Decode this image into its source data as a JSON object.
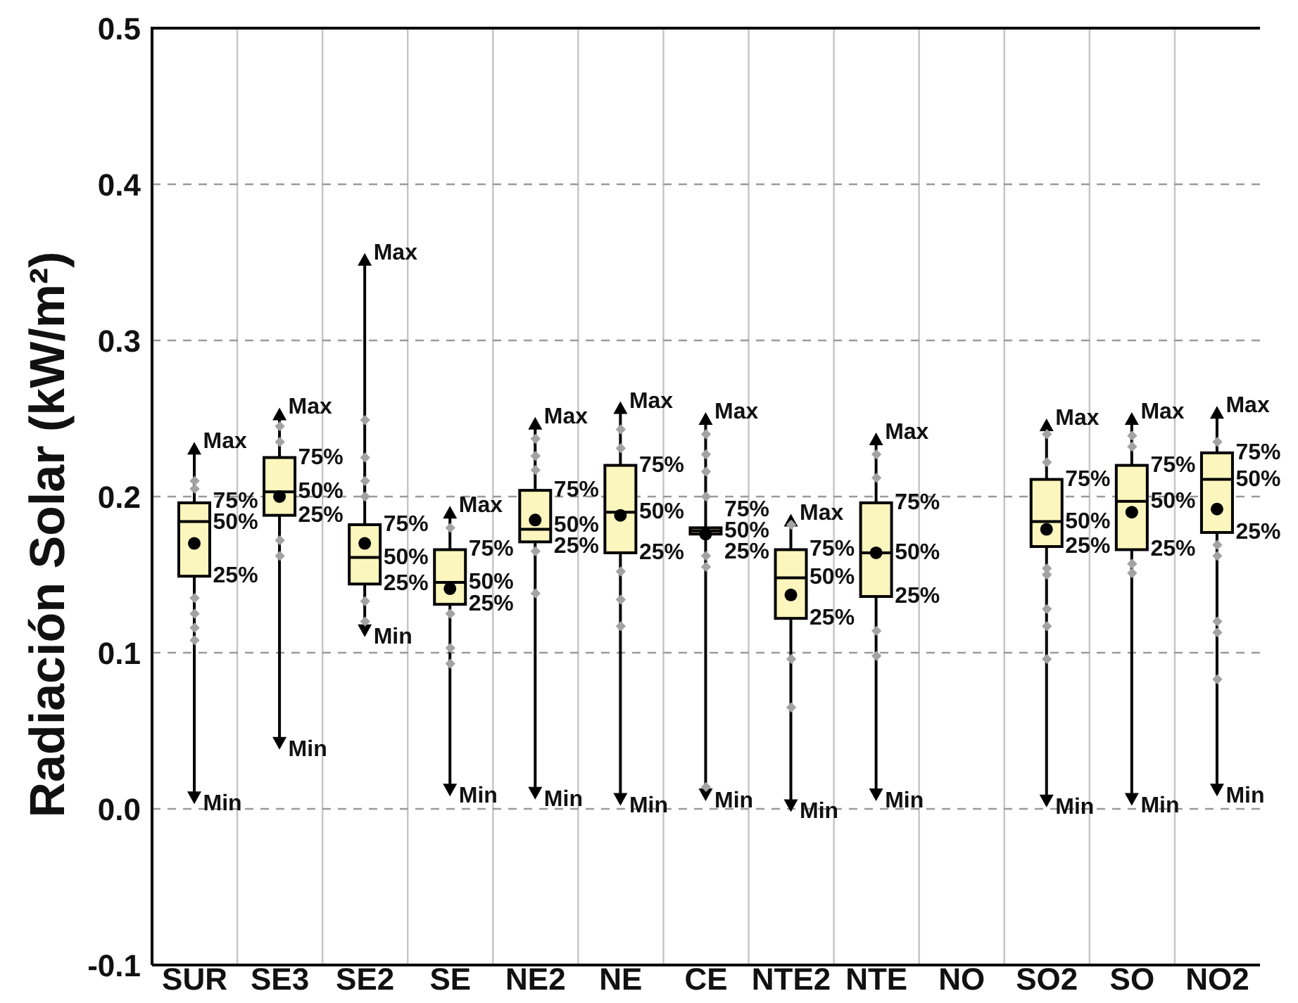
{
  "chart_data": {
    "type": "box",
    "ylabel": "Radiación Solar (kW/m²)",
    "categories": [
      "SUR",
      "SE3",
      "SE2",
      "SE",
      "NE2",
      "NE",
      "CE",
      "NTE2",
      "NTE",
      "NO",
      "SO2",
      "SO",
      "NO2"
    ],
    "series": [
      {
        "color": "#fbf6bd",
        "boxes": [
          {
            "low": 0.003,
            "q1": 0.149,
            "median": 0.184,
            "q3": 0.196,
            "high": 0.235,
            "mean": 0.17
          },
          {
            "low": 0.038,
            "q1": 0.188,
            "median": 0.203,
            "q3": 0.225,
            "high": 0.257,
            "mean": 0.2
          },
          {
            "low": 0.11,
            "q1": 0.144,
            "median": 0.161,
            "q3": 0.182,
            "high": 0.356,
            "mean": 0.17
          },
          {
            "low": 0.008,
            "q1": 0.131,
            "median": 0.145,
            "q3": 0.166,
            "high": 0.194,
            "mean": 0.141
          },
          {
            "low": 0.006,
            "q1": 0.171,
            "median": 0.179,
            "q3": 0.204,
            "high": 0.251,
            "mean": 0.185
          },
          {
            "low": 0.002,
            "q1": 0.164,
            "median": 0.19,
            "q3": 0.22,
            "high": 0.261,
            "mean": 0.188
          },
          {
            "low": 0.005,
            "q1": 0.176,
            "median": 0.178,
            "q3": 0.18,
            "high": 0.254,
            "mean": 0.176
          },
          {
            "low": -0.002,
            "q1": 0.122,
            "median": 0.148,
            "q3": 0.166,
            "high": 0.189,
            "mean": 0.137
          },
          {
            "low": 0.005,
            "q1": 0.136,
            "median": 0.164,
            "q3": 0.196,
            "high": 0.241,
            "mean": 0.164
          },
          null,
          {
            "low": 0.001,
            "q1": 0.168,
            "median": 0.184,
            "q3": 0.211,
            "high": 0.25,
            "mean": 0.179
          },
          {
            "low": 0.002,
            "q1": 0.166,
            "median": 0.197,
            "q3": 0.22,
            "high": 0.254,
            "mean": 0.19
          },
          {
            "low": 0.008,
            "q1": 0.177,
            "median": 0.211,
            "q3": 0.228,
            "high": 0.258,
            "mean": 0.192
          }
        ]
      },
      {
        "type": "scatter",
        "color": "#a3a3a3",
        "marker": "diamond",
        "x": [
          "SUR",
          "SUR",
          "SUR",
          "SUR",
          "SUR",
          "SUR",
          "SE3",
          "SE3",
          "SE3",
          "SE3",
          "SE2",
          "SE2",
          "SE2",
          "SE2",
          "SE2",
          "SE2",
          "SE",
          "SE",
          "SE",
          "SE",
          "NE2",
          "NE2",
          "NE2",
          "NE2",
          "NE2",
          "NE",
          "NE",
          "NE",
          "NE",
          "NE",
          "CE",
          "CE",
          "CE",
          "CE",
          "CE",
          "CE",
          "CE",
          "NTE2",
          "NTE2",
          "NTE2",
          "NTE",
          "NTE",
          "NTE",
          "NTE",
          "SO2",
          "SO2",
          "SO2",
          "SO2",
          "SO2",
          "SO2",
          "SO2",
          "SO",
          "SO",
          "SO",
          "SO",
          "NO2",
          "NO2",
          "NO2",
          "NO2",
          "NO2",
          "NO2"
        ],
        "values": [
          0.21,
          0.205,
          0.135,
          0.125,
          0.116,
          0.108,
          0.245,
          0.235,
          0.172,
          0.162,
          0.249,
          0.225,
          0.21,
          0.2,
          0.133,
          0.12,
          0.18,
          0.125,
          0.103,
          0.093,
          0.237,
          0.226,
          0.217,
          0.165,
          0.138,
          0.243,
          0.231,
          0.152,
          0.134,
          0.117,
          0.24,
          0.227,
          0.216,
          0.2,
          0.162,
          0.155,
          0.014,
          0.182,
          0.096,
          0.065,
          0.227,
          0.212,
          0.114,
          0.098,
          0.24,
          0.222,
          0.154,
          0.15,
          0.128,
          0.117,
          0.096,
          0.239,
          0.232,
          0.157,
          0.151,
          0.235,
          0.169,
          0.162,
          0.12,
          0.113,
          0.083
        ]
      }
    ],
    "ylim": [
      -0.1,
      0.5
    ],
    "yticks": [
      -0.1,
      {
        "value": 0,
        "label": "0.0"
      },
      0.1,
      0.2,
      0.3,
      0.4,
      0.5
    ],
    "grid": true,
    "annotations": [
      {
        "text": "Max",
        "x": "SUR",
        "y": 0.235
      },
      {
        "text": "75%",
        "x": "SUR",
        "y": 0.196
      },
      {
        "text": "50%",
        "x": "SUR",
        "y": 0.184
      },
      {
        "text": "25%",
        "x": "SUR",
        "y": 0.149
      },
      {
        "text": "Min",
        "x": "SUR",
        "y": 0.003
      },
      {
        "text": "Max",
        "x": "SE3",
        "y": 0.257
      },
      {
        "text": "75%",
        "x": "SE3",
        "y": 0.225
      },
      {
        "text": "50%",
        "x": "SE3",
        "y": 0.203
      },
      {
        "text": "25%",
        "x": "SE3",
        "y": 0.188
      },
      {
        "text": "Min",
        "x": "SE3",
        "y": 0.038
      },
      {
        "text": "Max",
        "x": "SE2",
        "y": 0.356
      },
      {
        "text": "75%",
        "x": "SE2",
        "y": 0.182
      },
      {
        "text": "50%",
        "x": "SE2",
        "y": 0.161
      },
      {
        "text": "25%",
        "x": "SE2",
        "y": 0.144
      },
      {
        "text": "Min",
        "x": "SE2",
        "y": 0.11
      },
      {
        "text": "Max",
        "x": "SE",
        "y": 0.194
      },
      {
        "text": "75%",
        "x": "SE",
        "y": 0.166
      },
      {
        "text": "50%",
        "x": "SE",
        "y": 0.145
      },
      {
        "text": "25%",
        "x": "SE",
        "y": 0.131
      },
      {
        "text": "Min",
        "x": "SE",
        "y": 0.008
      },
      {
        "text": "Max",
        "x": "NE2",
        "y": 0.251
      },
      {
        "text": "75%",
        "x": "NE2",
        "y": 0.204
      },
      {
        "text": "50%",
        "x": "NE2",
        "y": 0.179
      },
      {
        "text": "25%",
        "x": "NE2",
        "y": 0.171
      },
      {
        "text": "Min",
        "x": "NE2",
        "y": 0.006
      },
      {
        "text": "Max",
        "x": "NE",
        "y": 0.261
      },
      {
        "text": "75%",
        "x": "NE",
        "y": 0.22
      },
      {
        "text": "50%",
        "x": "NE",
        "y": 0.19
      },
      {
        "text": "25%",
        "x": "NE",
        "y": 0.164
      },
      {
        "text": "Min",
        "x": "NE",
        "y": 0.002
      },
      {
        "text": "Max",
        "x": "CE",
        "y": 0.254
      },
      {
        "text": "75%",
        "x": "CE",
        "y": 0.18
      },
      {
        "text": "50%",
        "x": "CE",
        "y": 0.178
      },
      {
        "text": "25%",
        "x": "CE",
        "y": 0.176
      },
      {
        "text": "Min",
        "x": "CE",
        "y": 0.005
      },
      {
        "text": "Max",
        "x": "NTE2",
        "y": 0.189
      },
      {
        "text": "75%",
        "x": "NTE2",
        "y": 0.166
      },
      {
        "text": "50%",
        "x": "NTE2",
        "y": 0.148
      },
      {
        "text": "25%",
        "x": "NTE2",
        "y": 0.122
      },
      {
        "text": "Min",
        "x": "NTE2",
        "y": -0.002
      },
      {
        "text": "Max",
        "x": "NTE",
        "y": 0.241
      },
      {
        "text": "75%",
        "x": "NTE",
        "y": 0.196
      },
      {
        "text": "50%",
        "x": "NTE",
        "y": 0.164
      },
      {
        "text": "25%",
        "x": "NTE",
        "y": 0.136
      },
      {
        "text": "Min",
        "x": "NTE",
        "y": 0.005
      },
      {
        "text": "Max",
        "x": "SO2",
        "y": 0.25
      },
      {
        "text": "75%",
        "x": "SO2",
        "y": 0.211
      },
      {
        "text": "50%",
        "x": "SO2",
        "y": 0.184
      },
      {
        "text": "25%",
        "x": "SO2",
        "y": 0.168
      },
      {
        "text": "Min",
        "x": "SO2",
        "y": 0.001
      },
      {
        "text": "Max",
        "x": "SO",
        "y": 0.254
      },
      {
        "text": "75%",
        "x": "SO",
        "y": 0.22
      },
      {
        "text": "50%",
        "x": "SO",
        "y": 0.197
      },
      {
        "text": "25%",
        "x": "SO",
        "y": 0.166
      },
      {
        "text": "Min",
        "x": "SO",
        "y": 0.002
      },
      {
        "text": "Max",
        "x": "NO2",
        "y": 0.258
      },
      {
        "text": "75%",
        "x": "NO2",
        "y": 0.228
      },
      {
        "text": "50%",
        "x": "NO2",
        "y": 0.211
      },
      {
        "text": "25%",
        "x": "NO2",
        "y": 0.177
      },
      {
        "text": "Min",
        "x": "NO2",
        "y": 0.008
      }
    ]
  }
}
